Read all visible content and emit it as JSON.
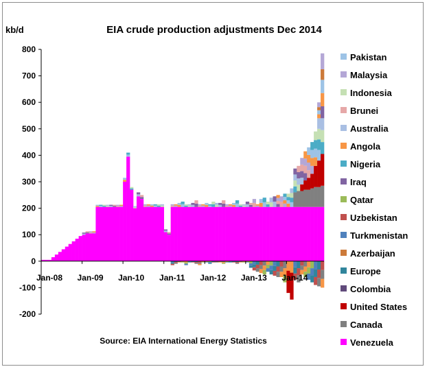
{
  "chart_data": {
    "type": "bar",
    "stacked": true,
    "title": "EIA crude production adjustments Dec 2014",
    "ylabel": "kb/d",
    "source": "Source: EIA International Energy Statistics",
    "ylim": [
      -200,
      800
    ],
    "yticks": [
      -200,
      -100,
      0,
      100,
      200,
      300,
      400,
      500,
      600,
      700,
      800
    ],
    "xticks": [
      {
        "label": "Jan-08",
        "index": 0
      },
      {
        "label": "Jan-09",
        "index": 12
      },
      {
        "label": "Jan-10",
        "index": 24
      },
      {
        "label": "Jan-11",
        "index": 36
      },
      {
        "label": "Jan-12",
        "index": 48
      },
      {
        "label": "Jan-13",
        "index": 60
      },
      {
        "label": "Jan-14",
        "index": 72
      }
    ],
    "months": 83,
    "grid": false,
    "legend_position": "right",
    "legend": [
      {
        "name": "Pakistan",
        "color": "#9dc3e6"
      },
      {
        "name": "Malaysia",
        "color": "#b4a7d6"
      },
      {
        "name": "Indonesia",
        "color": "#c5e0b4"
      },
      {
        "name": "Brunei",
        "color": "#e6a8a8"
      },
      {
        "name": "Australia",
        "color": "#a9bfe3"
      },
      {
        "name": "Angola",
        "color": "#f79646"
      },
      {
        "name": "Nigeria",
        "color": "#4bacc6"
      },
      {
        "name": "Iraq",
        "color": "#8064a2"
      },
      {
        "name": "Qatar",
        "color": "#9bbb59"
      },
      {
        "name": "Uzbekistan",
        "color": "#c0504d"
      },
      {
        "name": "Turkmenistan",
        "color": "#4f81bd"
      },
      {
        "name": "Azerbaijan",
        "color": "#cc7a3a"
      },
      {
        "name": "Europe",
        "color": "#31859c"
      },
      {
        "name": "Colombia",
        "color": "#604a7b"
      },
      {
        "name": "United States",
        "color": "#c00000"
      },
      {
        "name": "Canada",
        "color": "#808080"
      },
      {
        "name": "Venezuela",
        "color": "#ff00ff"
      }
    ],
    "venezuela": [
      5,
      5,
      5,
      15,
      25,
      35,
      45,
      55,
      65,
      75,
      85,
      95,
      100,
      105,
      105,
      105,
      205,
      205,
      205,
      205,
      205,
      205,
      205,
      205,
      300,
      395,
      270,
      200,
      245,
      235,
      205,
      205,
      205,
      205,
      205,
      205,
      110,
      100,
      205,
      205,
      205,
      205,
      205,
      205,
      205,
      205,
      205,
      205,
      205,
      205,
      205,
      205,
      205,
      205,
      205,
      205,
      205,
      205,
      205,
      205,
      205,
      205,
      205,
      205,
      205,
      205,
      205,
      205,
      205,
      205,
      205,
      205,
      205,
      205,
      205,
      205,
      205,
      205,
      205,
      205,
      205,
      205,
      205
    ],
    "other_positive": [
      0,
      0,
      0,
      0,
      0,
      0,
      0,
      0,
      0,
      0,
      0,
      0,
      8,
      8,
      8,
      8,
      8,
      8,
      8,
      8,
      8,
      8,
      8,
      8,
      15,
      15,
      10,
      8,
      15,
      15,
      10,
      10,
      10,
      10,
      10,
      10,
      10,
      10,
      10,
      10,
      15,
      20,
      10,
      10,
      15,
      25,
      10,
      10,
      15,
      10,
      20,
      15,
      15,
      25,
      10,
      10,
      15,
      25,
      10,
      10,
      20,
      15,
      30,
      10,
      30,
      35,
      20,
      35,
      40,
      45,
      40,
      50,
      50,
      70,
      90,
      95,
      100,
      110,
      115,
      120,
      130,
      160,
      180
    ],
    "canada": [
      0,
      0,
      0,
      0,
      0,
      0,
      0,
      0,
      0,
      0,
      0,
      0,
      0,
      0,
      0,
      0,
      0,
      0,
      0,
      0,
      0,
      0,
      0,
      0,
      0,
      0,
      0,
      0,
      0,
      0,
      0,
      0,
      0,
      0,
      0,
      0,
      0,
      0,
      0,
      0,
      0,
      0,
      0,
      0,
      0,
      0,
      0,
      0,
      0,
      0,
      0,
      0,
      0,
      0,
      0,
      0,
      0,
      0,
      0,
      0,
      0,
      0,
      0,
      0,
      0,
      0,
      0,
      0,
      0,
      0,
      0,
      0,
      0,
      0,
      55,
      60,
      60,
      65,
      65,
      70,
      75,
      75,
      80
    ],
    "united_states": [
      0,
      0,
      0,
      0,
      0,
      0,
      0,
      0,
      0,
      0,
      0,
      0,
      0,
      0,
      0,
      0,
      0,
      0,
      0,
      0,
      0,
      0,
      0,
      0,
      0,
      0,
      0,
      0,
      0,
      0,
      0,
      0,
      0,
      0,
      0,
      0,
      0,
      0,
      0,
      0,
      0,
      0,
      0,
      0,
      0,
      0,
      0,
      0,
      0,
      0,
      0,
      0,
      0,
      0,
      0,
      0,
      0,
      0,
      0,
      0,
      0,
      0,
      0,
      0,
      0,
      0,
      0,
      0,
      0,
      0,
      0,
      0,
      0,
      0,
      0,
      0,
      25,
      35,
      45,
      55,
      80,
      100,
      120
    ],
    "other_pos_top": [
      0,
      0,
      0,
      0,
      0,
      0,
      0,
      0,
      0,
      0,
      0,
      0,
      0,
      0,
      0,
      0,
      0,
      0,
      0,
      0,
      0,
      0,
      0,
      0,
      0,
      0,
      0,
      0,
      0,
      0,
      0,
      0,
      0,
      0,
      0,
      0,
      0,
      0,
      0,
      0,
      0,
      0,
      0,
      0,
      0,
      0,
      0,
      0,
      0,
      0,
      0,
      0,
      0,
      0,
      0,
      0,
      0,
      0,
      0,
      0,
      0,
      0,
      0,
      0,
      0,
      0,
      0,
      0,
      0,
      0,
      0,
      0,
      0,
      0,
      0,
      0,
      0,
      0,
      0,
      0,
      0,
      60,
      200
    ],
    "negative": [
      0,
      0,
      0,
      0,
      0,
      0,
      0,
      0,
      0,
      0,
      0,
      0,
      0,
      0,
      0,
      0,
      0,
      0,
      0,
      0,
      0,
      0,
      0,
      0,
      0,
      0,
      0,
      0,
      0,
      0,
      0,
      0,
      0,
      0,
      0,
      0,
      0,
      0,
      -15,
      -10,
      -5,
      -5,
      -15,
      -5,
      -5,
      -10,
      -15,
      -5,
      -5,
      -10,
      -5,
      -5,
      -5,
      -10,
      -5,
      -5,
      -5,
      -10,
      -5,
      -5,
      -5,
      -25,
      -35,
      -40,
      -45,
      -50,
      -40,
      -50,
      -55,
      -60,
      -60,
      -80,
      -120,
      -145,
      -70,
      -80,
      -50,
      -60,
      -70,
      -80,
      -90,
      -95,
      -100
    ]
  }
}
